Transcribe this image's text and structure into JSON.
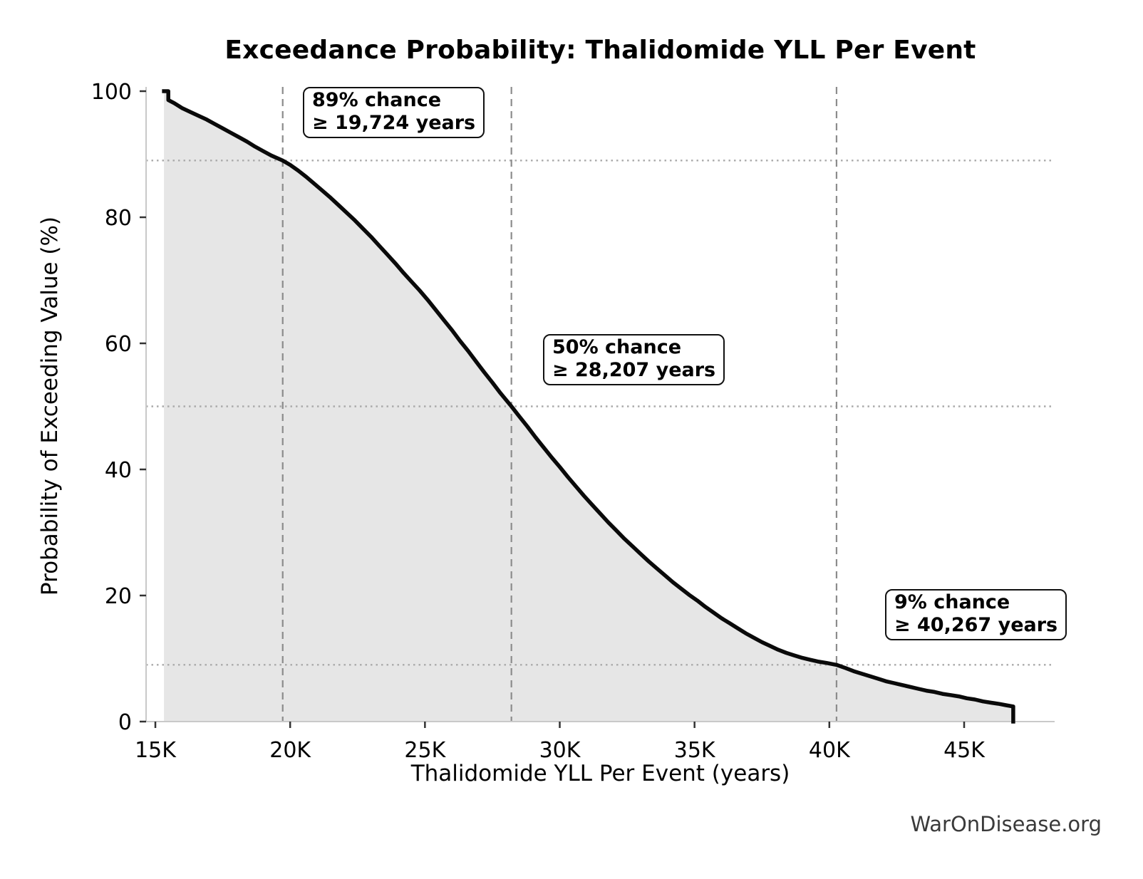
{
  "page": {
    "watermark": "WarOnDisease.org"
  },
  "chart_data": {
    "type": "area",
    "title": "Exceedance Probability: Thalidomide YLL Per Event",
    "xlabel": "Thalidomide YLL Per Event (years)",
    "ylabel": "Probability of Exceeding Value (%)",
    "xlim": [
      14656,
      48357
    ],
    "ylim": [
      0,
      100
    ],
    "grid": "reference-lines-only",
    "x_ticks": [
      {
        "value": 15000,
        "label": "15K"
      },
      {
        "value": 20000,
        "label": "20K"
      },
      {
        "value": 25000,
        "label": "25K"
      },
      {
        "value": 30000,
        "label": "30K"
      },
      {
        "value": 35000,
        "label": "35K"
      },
      {
        "value": 40000,
        "label": "40K"
      },
      {
        "value": 45000,
        "label": "45K"
      }
    ],
    "y_ticks": [
      {
        "value": 0,
        "label": "0"
      },
      {
        "value": 20,
        "label": "20"
      },
      {
        "value": 40,
        "label": "40"
      },
      {
        "value": 60,
        "label": "60"
      },
      {
        "value": 80,
        "label": "80"
      },
      {
        "value": 100,
        "label": "100"
      }
    ],
    "markers": [
      {
        "probability": 89,
        "value": 19724,
        "label": [
          "89% chance",
          "≥ 19,724 years"
        ]
      },
      {
        "probability": 50,
        "value": 28207,
        "label": [
          "50% chance",
          "≥ 28,207 years"
        ]
      },
      {
        "probability": 9,
        "value": 40267,
        "label": [
          "9% chance",
          "≥ 40,267 years"
        ]
      }
    ],
    "curve": [
      [
        15320,
        100
      ],
      [
        15480,
        100
      ],
      [
        15480,
        98.6
      ],
      [
        15700,
        98.1
      ],
      [
        16000,
        97.3
      ],
      [
        16300,
        96.7
      ],
      [
        16600,
        96.1
      ],
      [
        16900,
        95.5
      ],
      [
        17200,
        94.8
      ],
      [
        17500,
        94.1
      ],
      [
        17800,
        93.4
      ],
      [
        18100,
        92.7
      ],
      [
        18400,
        92.0
      ],
      [
        18700,
        91.2
      ],
      [
        19000,
        90.5
      ],
      [
        19300,
        89.8
      ],
      [
        19724,
        89.0
      ],
      [
        20000,
        88.3
      ],
      [
        20300,
        87.4
      ],
      [
        20600,
        86.4
      ],
      [
        20900,
        85.3
      ],
      [
        21200,
        84.2
      ],
      [
        21500,
        83.1
      ],
      [
        21800,
        81.9
      ],
      [
        22100,
        80.7
      ],
      [
        22400,
        79.5
      ],
      [
        22700,
        78.2
      ],
      [
        23000,
        76.9
      ],
      [
        23300,
        75.5
      ],
      [
        23600,
        74.1
      ],
      [
        23900,
        72.7
      ],
      [
        24200,
        71.2
      ],
      [
        24500,
        69.8
      ],
      [
        24800,
        68.4
      ],
      [
        25100,
        66.9
      ],
      [
        25400,
        65.3
      ],
      [
        25700,
        63.7
      ],
      [
        26000,
        62.1
      ],
      [
        26300,
        60.4
      ],
      [
        26600,
        58.8
      ],
      [
        26900,
        57.1
      ],
      [
        27200,
        55.4
      ],
      [
        27500,
        53.8
      ],
      [
        27800,
        52.1
      ],
      [
        28207,
        50.0
      ],
      [
        28500,
        48.4
      ],
      [
        28800,
        46.8
      ],
      [
        29100,
        45.1
      ],
      [
        29400,
        43.5
      ],
      [
        29700,
        41.9
      ],
      [
        30000,
        40.4
      ],
      [
        30300,
        38.8
      ],
      [
        30600,
        37.3
      ],
      [
        30900,
        35.8
      ],
      [
        31200,
        34.4
      ],
      [
        31500,
        33.0
      ],
      [
        31800,
        31.6
      ],
      [
        32100,
        30.3
      ],
      [
        32400,
        29.0
      ],
      [
        32700,
        27.8
      ],
      [
        33000,
        26.6
      ],
      [
        33300,
        25.4
      ],
      [
        33600,
        24.3
      ],
      [
        33900,
        23.2
      ],
      [
        34200,
        22.1
      ],
      [
        34500,
        21.1
      ],
      [
        34800,
        20.1
      ],
      [
        35100,
        19.2
      ],
      [
        35400,
        18.2
      ],
      [
        35700,
        17.3
      ],
      [
        36000,
        16.4
      ],
      [
        36300,
        15.6
      ],
      [
        36600,
        14.8
      ],
      [
        36900,
        14.0
      ],
      [
        37200,
        13.3
      ],
      [
        37500,
        12.6
      ],
      [
        37800,
        12.0
      ],
      [
        38100,
        11.4
      ],
      [
        38400,
        10.9
      ],
      [
        38700,
        10.5
      ],
      [
        39000,
        10.1
      ],
      [
        39300,
        9.8
      ],
      [
        39600,
        9.5
      ],
      [
        39900,
        9.3
      ],
      [
        40267,
        9.0
      ],
      [
        40600,
        8.5
      ],
      [
        40900,
        8.0
      ],
      [
        41200,
        7.6
      ],
      [
        41500,
        7.2
      ],
      [
        41800,
        6.8
      ],
      [
        42100,
        6.4
      ],
      [
        42400,
        6.1
      ],
      [
        42700,
        5.8
      ],
      [
        43000,
        5.5
      ],
      [
        43300,
        5.2
      ],
      [
        43600,
        4.9
      ],
      [
        43900,
        4.7
      ],
      [
        44200,
        4.4
      ],
      [
        44500,
        4.2
      ],
      [
        44800,
        4.0
      ],
      [
        45100,
        3.7
      ],
      [
        45400,
        3.5
      ],
      [
        45700,
        3.2
      ],
      [
        46000,
        3.0
      ],
      [
        46300,
        2.8
      ],
      [
        46550,
        2.6
      ],
      [
        46820,
        2.4
      ],
      [
        46820,
        0
      ]
    ],
    "styles": {
      "line_color": "#0a0a0a",
      "fill_color": "#e6e6e6",
      "vline_color": "#8c8c8c",
      "hline_color": "#aaaaaa",
      "spine_color": "#c9c9c9",
      "tick_color": "#333333",
      "text_color": "#000000",
      "watermark_color": "#3a3a3a"
    }
  }
}
